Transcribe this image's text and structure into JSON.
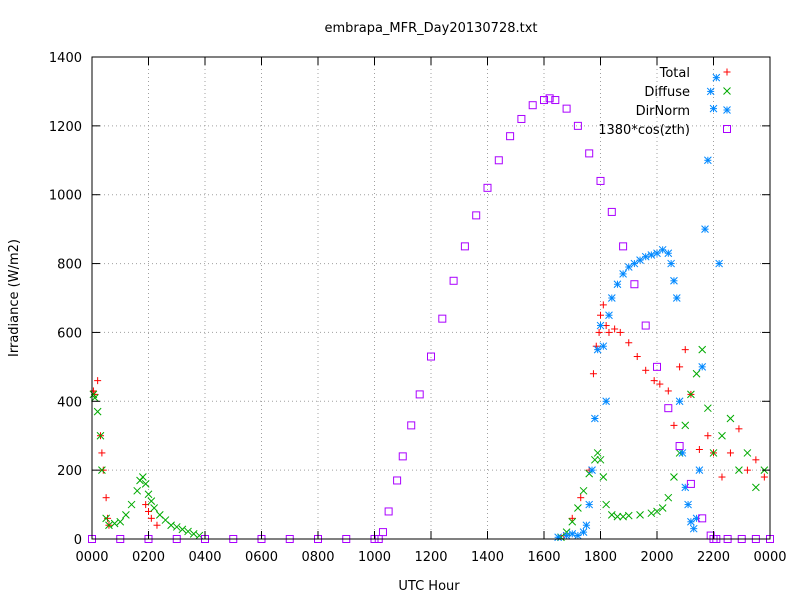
{
  "chart_data": {
    "type": "scatter",
    "title": "embrapa_MFR_Day20130728.txt",
    "xlabel": "UTC Hour",
    "ylabel": "Irradiance (W/m2)",
    "xlim": [
      0,
      24
    ],
    "ylim": [
      0,
      1400
    ],
    "grid": true,
    "legend_position": "top-right",
    "x_tick_values": [
      0,
      2,
      4,
      6,
      8,
      10,
      12,
      14,
      16,
      18,
      20,
      22,
      24
    ],
    "x_tick_labels": [
      "0000",
      "0200",
      "0400",
      "0600",
      "0800",
      "1000",
      "1200",
      "1400",
      "1600",
      "1800",
      "2000",
      "2200",
      "0000"
    ],
    "y_ticks": [
      0,
      200,
      400,
      600,
      800,
      1000,
      1200,
      1400
    ],
    "series": [
      {
        "name": "Total",
        "color": "#ff0000",
        "marker": "plus",
        "x": [
          0.05,
          0.1,
          0.2,
          0.3,
          0.35,
          0.4,
          0.5,
          0.55,
          0.6,
          1.9,
          2.0,
          2.1,
          2.3,
          16.7,
          17.0,
          17.3,
          17.6,
          17.75,
          17.85,
          17.95,
          18.0,
          18.1,
          18.2,
          18.3,
          18.5,
          18.7,
          19.0,
          19.3,
          19.6,
          19.9,
          20.1,
          20.4,
          20.6,
          20.8,
          21.0,
          21.2,
          21.5,
          21.8,
          22.0,
          22.3,
          22.6,
          22.9,
          23.2,
          23.5,
          23.8
        ],
        "y": [
          430,
          420,
          460,
          300,
          250,
          200,
          120,
          60,
          40,
          100,
          80,
          60,
          40,
          10,
          60,
          120,
          200,
          480,
          560,
          600,
          650,
          680,
          620,
          600,
          610,
          600,
          570,
          530,
          490,
          460,
          450,
          430,
          330,
          500,
          550,
          420,
          260,
          300,
          250,
          180,
          250,
          320,
          200,
          230,
          180
        ]
      },
      {
        "name": "Diffuse",
        "color": "#00aa00",
        "marker": "cross",
        "x": [
          0.05,
          0.1,
          0.2,
          0.3,
          0.35,
          0.5,
          0.6,
          0.8,
          1.0,
          1.2,
          1.4,
          1.6,
          1.7,
          1.8,
          1.9,
          2.0,
          2.1,
          2.2,
          2.4,
          2.6,
          2.8,
          3.0,
          3.2,
          3.4,
          3.6,
          3.8,
          16.6,
          16.8,
          17.0,
          17.2,
          17.4,
          17.6,
          17.8,
          17.9,
          18.0,
          18.1,
          18.2,
          18.4,
          18.6,
          18.8,
          19.0,
          19.4,
          19.8,
          20.0,
          20.2,
          20.4,
          20.6,
          20.8,
          21.0,
          21.2,
          21.4,
          21.6,
          21.8,
          22.0,
          22.3,
          22.6,
          22.9,
          23.2,
          23.5,
          23.8
        ],
        "y": [
          420,
          410,
          370,
          300,
          200,
          60,
          40,
          45,
          50,
          70,
          100,
          140,
          170,
          180,
          160,
          130,
          110,
          90,
          70,
          55,
          40,
          35,
          28,
          22,
          15,
          10,
          5,
          20,
          50,
          90,
          140,
          190,
          230,
          250,
          230,
          180,
          100,
          70,
          65,
          65,
          68,
          70,
          75,
          80,
          90,
          120,
          180,
          250,
          330,
          420,
          480,
          550,
          380,
          250,
          300,
          350,
          200,
          250,
          150,
          200
        ]
      },
      {
        "name": "DirNorm",
        "color": "#0088ff",
        "marker": "star",
        "x": [
          16.5,
          16.8,
          17.0,
          17.2,
          17.4,
          17.5,
          17.6,
          17.7,
          17.8,
          17.9,
          18.0,
          18.1,
          18.2,
          18.3,
          18.4,
          18.6,
          18.8,
          19.0,
          19.2,
          19.4,
          19.6,
          19.8,
          20.0,
          20.2,
          20.4,
          20.5,
          20.6,
          20.7,
          20.8,
          20.9,
          21.0,
          21.1,
          21.2,
          21.3,
          21.4,
          21.5,
          21.6,
          21.7,
          21.8,
          21.9,
          22.0,
          22.1,
          22.2
        ],
        "y": [
          5,
          10,
          15,
          10,
          20,
          40,
          100,
          200,
          350,
          550,
          620,
          560,
          400,
          650,
          700,
          740,
          770,
          790,
          800,
          810,
          820,
          825,
          830,
          840,
          830,
          800,
          750,
          700,
          400,
          250,
          150,
          100,
          50,
          30,
          60,
          200,
          500,
          900,
          1100,
          1300,
          1250,
          1340,
          800
        ]
      },
      {
        "name": "1380*cos(zth)",
        "color": "#aa00ff",
        "marker": "square",
        "x": [
          0.0,
          1.0,
          2.0,
          3.0,
          4.0,
          5.0,
          6.0,
          7.0,
          8.0,
          9.0,
          10.0,
          10.15,
          10.3,
          10.5,
          10.8,
          11.0,
          11.3,
          11.6,
          12.0,
          12.4,
          12.8,
          13.2,
          13.6,
          14.0,
          14.4,
          14.8,
          15.2,
          15.6,
          16.0,
          16.2,
          16.4,
          16.8,
          17.2,
          17.6,
          18.0,
          18.4,
          18.8,
          19.2,
          19.6,
          20.0,
          20.4,
          20.8,
          21.2,
          21.6,
          21.9,
          22.0,
          22.1,
          22.5,
          23.0,
          23.5,
          24.0
        ],
        "y": [
          0,
          0,
          0,
          0,
          0,
          0,
          0,
          0,
          0,
          0,
          0,
          0,
          20,
          80,
          170,
          240,
          330,
          420,
          530,
          640,
          750,
          850,
          940,
          1020,
          1100,
          1170,
          1220,
          1260,
          1275,
          1280,
          1275,
          1250,
          1200,
          1120,
          1040,
          950,
          850,
          740,
          620,
          500,
          380,
          270,
          160,
          60,
          10,
          0,
          0,
          0,
          0,
          0,
          0
        ]
      }
    ]
  }
}
